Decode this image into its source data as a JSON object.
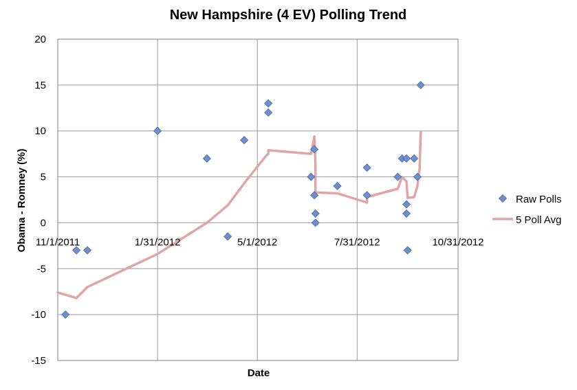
{
  "chart_data": {
    "type": "scatter",
    "title": "New Hampshire (4 EV) Polling Trend",
    "xlabel": "Date",
    "ylabel": "Obama - Romney (%)",
    "x_ticks": [
      {
        "label": "11/1/2011",
        "x": 0
      },
      {
        "label": "1/31/2012",
        "x": 91
      },
      {
        "label": "5/1/2012",
        "x": 182
      },
      {
        "label": "7/31/2012",
        "x": 273
      },
      {
        "label": "10/31/2012",
        "x": 365
      }
    ],
    "xlim": [
      0,
      365
    ],
    "ylim": [
      -15,
      20
    ],
    "y_ticks": [
      -15,
      -10,
      -5,
      0,
      5,
      10,
      15,
      20
    ],
    "grid": true,
    "legend_position": "right",
    "colors": {
      "raw": "#6f8fca",
      "raw_stroke": "#4a6aa8",
      "avg": "#e0a5a5",
      "grid": "#999999"
    },
    "series": [
      {
        "name": "Raw Polls",
        "marker": "diamond",
        "points": [
          [
            7,
            -10
          ],
          [
            17,
            -3
          ],
          [
            27,
            -3
          ],
          [
            91,
            10
          ],
          [
            136,
            7
          ],
          [
            155,
            -1.5
          ],
          [
            170,
            9
          ],
          [
            192,
            13
          ],
          [
            192,
            12
          ],
          [
            231,
            5
          ],
          [
            234,
            8
          ],
          [
            234,
            3
          ],
          [
            235,
            1
          ],
          [
            235,
            0
          ],
          [
            255,
            4
          ],
          [
            282,
            6
          ],
          [
            282,
            3
          ],
          [
            310,
            5
          ],
          [
            314,
            7
          ],
          [
            318,
            7
          ],
          [
            318,
            2
          ],
          [
            318,
            1
          ],
          [
            319,
            -3
          ],
          [
            325,
            7
          ],
          [
            328,
            5
          ],
          [
            331,
            15
          ]
        ]
      },
      {
        "name": "5 Poll Avg",
        "marker": "line",
        "points": [
          [
            0,
            -7.6
          ],
          [
            17,
            -8.2
          ],
          [
            27,
            -7
          ],
          [
            91,
            -3.4
          ],
          [
            136,
            0
          ],
          [
            155,
            1.9
          ],
          [
            170,
            4.3
          ],
          [
            190,
            7.3
          ],
          [
            192,
            7.5
          ],
          [
            192,
            7.9
          ],
          [
            231,
            7.5
          ],
          [
            234,
            9.4
          ],
          [
            235,
            6.4
          ],
          [
            235,
            3.3
          ],
          [
            255,
            3.2
          ],
          [
            282,
            2.2
          ],
          [
            282,
            2.8
          ],
          [
            310,
            3.7
          ],
          [
            314,
            5
          ],
          [
            318,
            4.5
          ],
          [
            319,
            2.7
          ],
          [
            325,
            2.8
          ],
          [
            328,
            4
          ],
          [
            330,
            6
          ],
          [
            331,
            9.9
          ]
        ]
      }
    ]
  }
}
